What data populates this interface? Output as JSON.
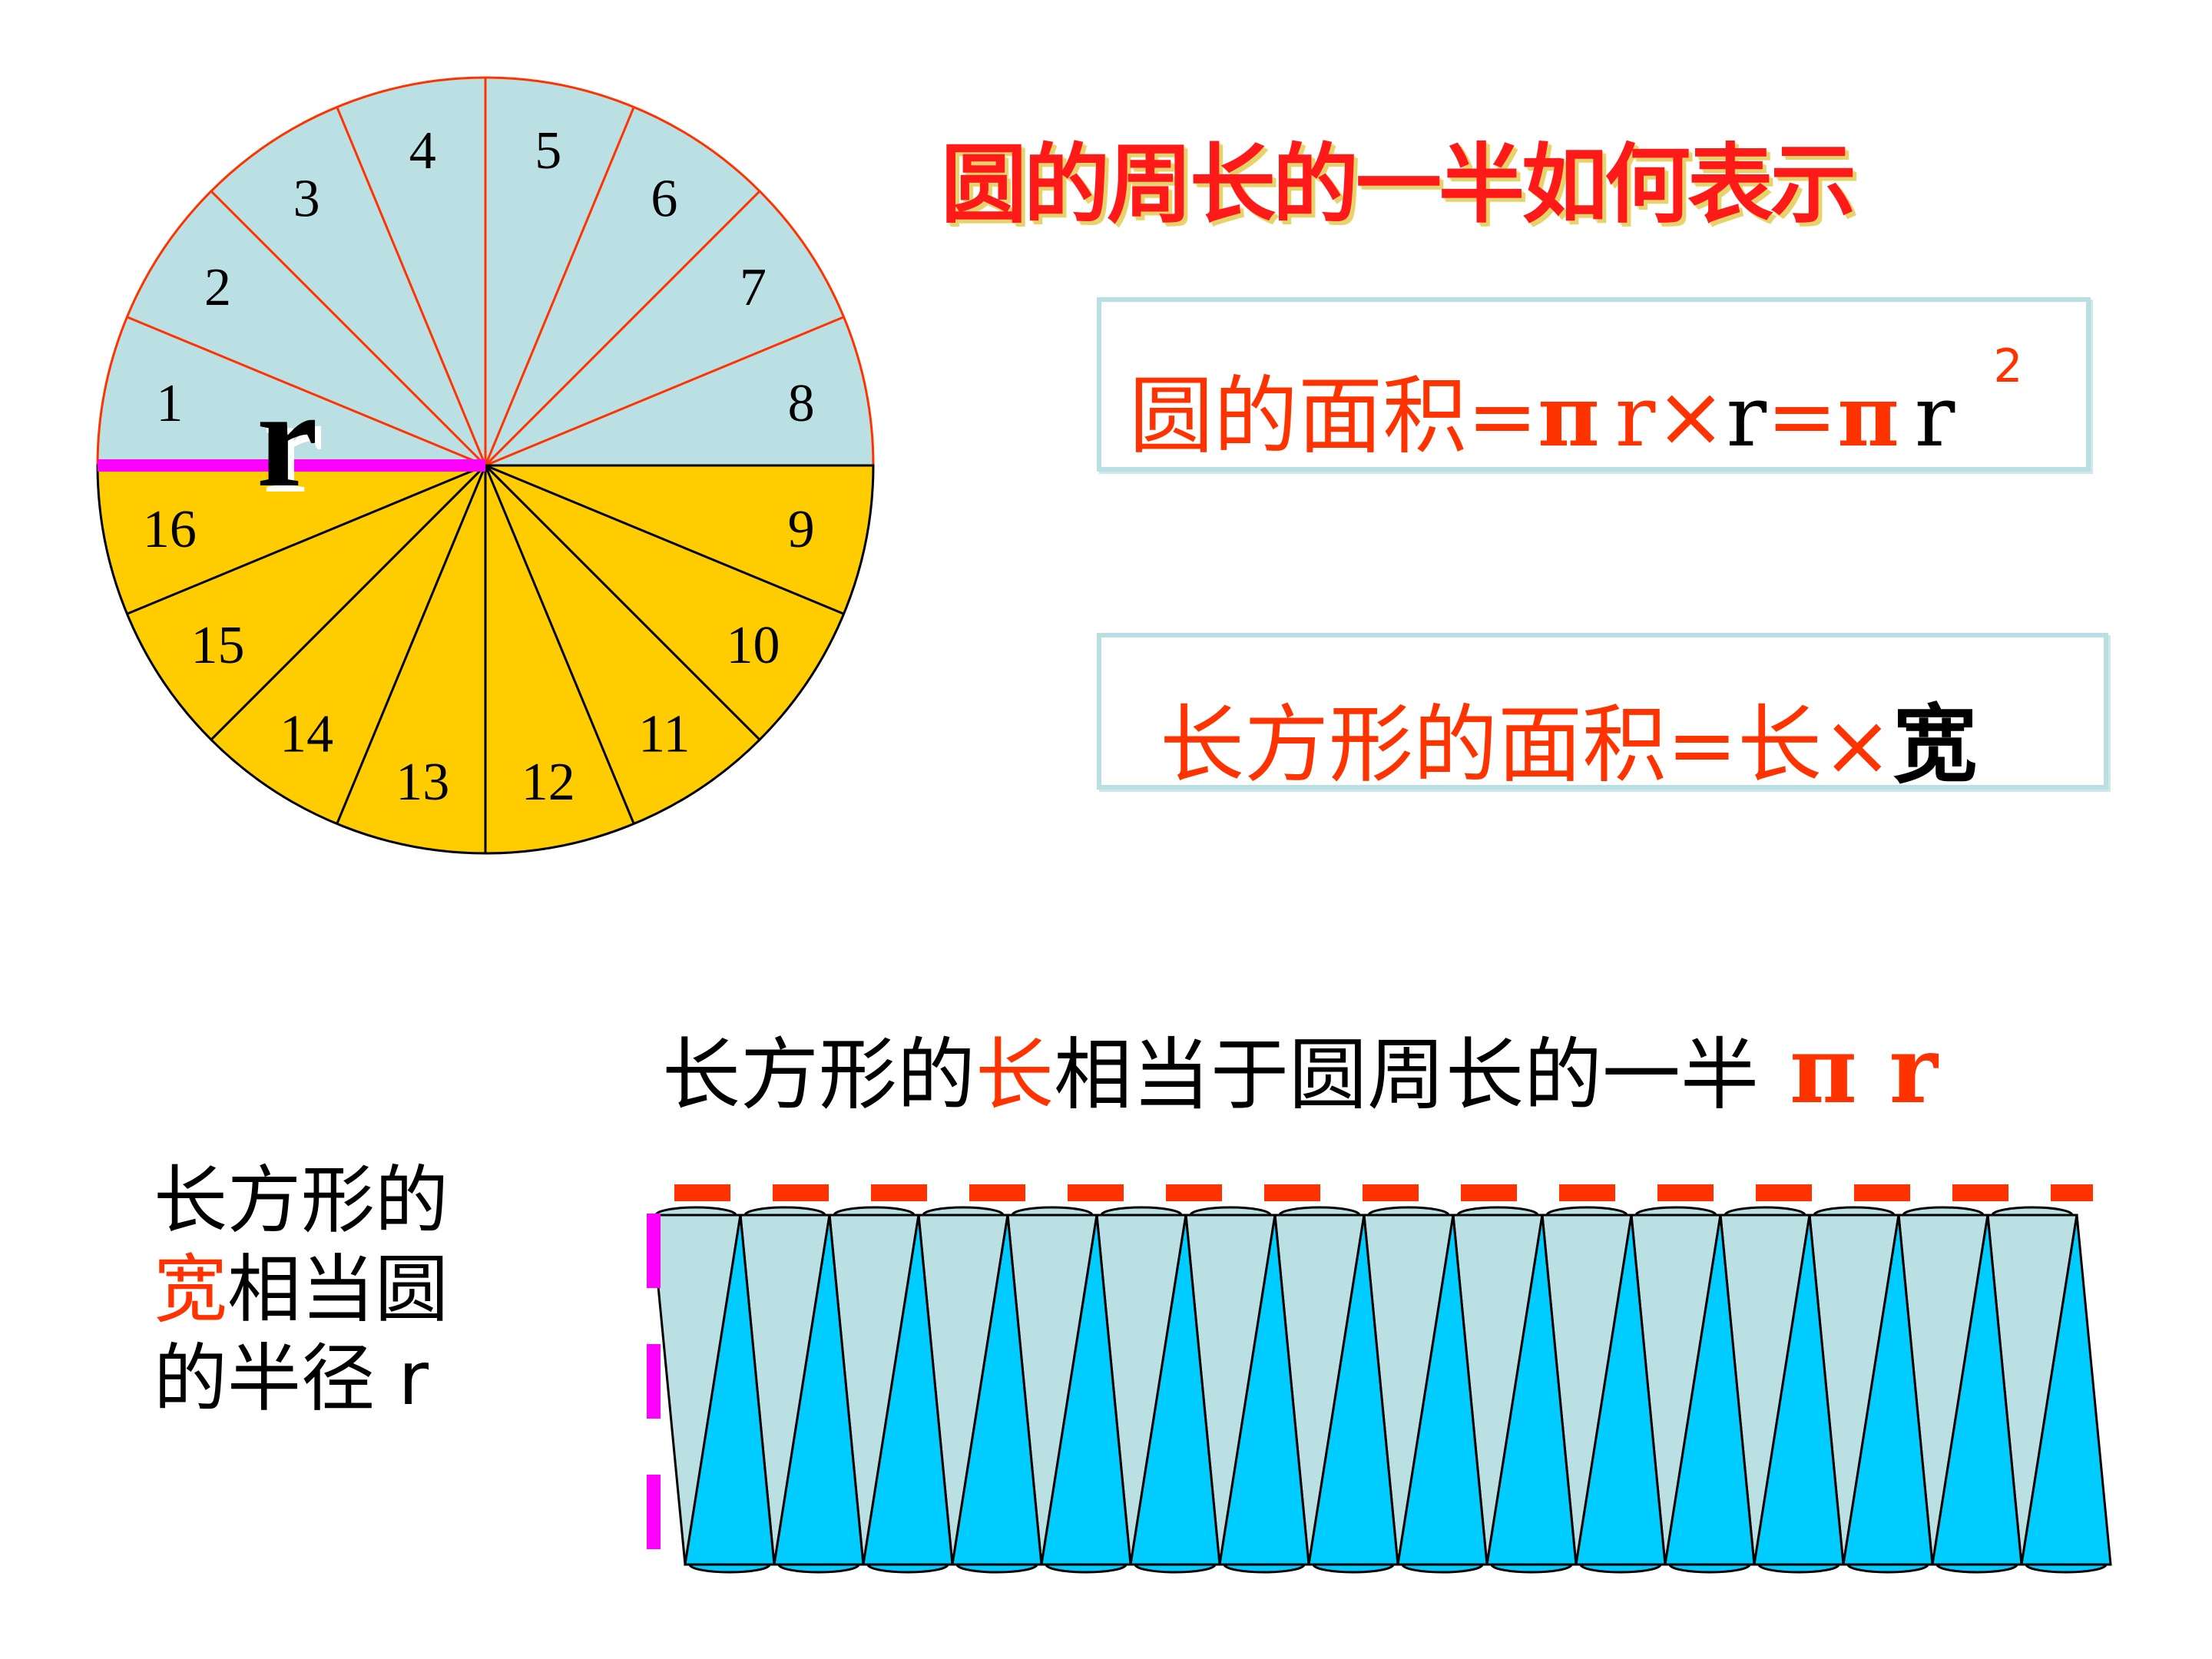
{
  "title": "圆的周长的一半如何表示",
  "circle": {
    "sector_labels": [
      "1",
      "2",
      "3",
      "4",
      "5",
      "6",
      "7",
      "8",
      "9",
      "10",
      "11",
      "12",
      "13",
      "14",
      "15",
      "16"
    ],
    "radius_label": "r",
    "colors": {
      "upper_fill": "#bbe0e3",
      "lower_fill": "#ffcc00",
      "upper_lines": "#ff3300",
      "lower_lines": "#000000",
      "radius_line": "#ff00ff"
    }
  },
  "formula_circle": {
    "prefix": "圆的面积=",
    "pi1": "π",
    "r1": "r",
    "times": "×",
    "r2": "r",
    "eq": "=",
    "pi2": "π",
    "r3": "r",
    "exp": "2"
  },
  "formula_rect": {
    "prefix": "长方形的面积=长×",
    "width_word": "宽"
  },
  "length_note": {
    "part1": "长方形的",
    "highlight": "长",
    "part2": "相当于圆周长的一半",
    "pi_r": "π r"
  },
  "width_note": {
    "line1": "长方形的",
    "highlight": "宽",
    "line2_rest": "相当圆",
    "line3": "的半径 r"
  },
  "rectangle": {
    "pieces_per_row": 16,
    "colors": {
      "down_fill": "#bbe0e3",
      "up_fill": "#00ccff",
      "top_dash": "#ff3300",
      "side_dash": "#ff00ff"
    }
  }
}
